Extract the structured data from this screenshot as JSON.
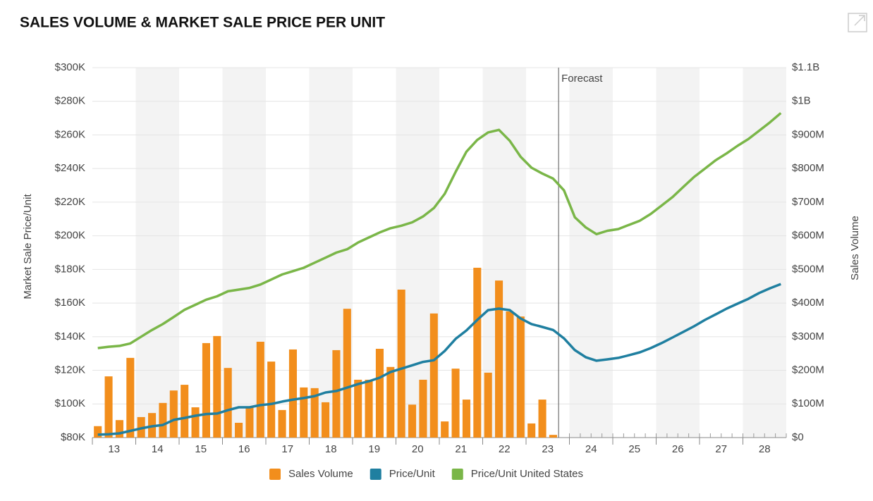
{
  "chart_data": {
    "type": "combo",
    "title": "SALES VOLUME & MARKET SALE PRICE PER UNIT",
    "y_label": "Market Sale Price/Unit",
    "y2_label": "Sales Volume",
    "annotation": "Forecast",
    "x": [
      13.125,
      13.375,
      13.625,
      13.875,
      14.125,
      14.375,
      14.625,
      14.875,
      15.125,
      15.375,
      15.625,
      15.875,
      16.125,
      16.375,
      16.625,
      16.875,
      17.125,
      17.375,
      17.625,
      17.875,
      18.125,
      18.375,
      18.625,
      18.875,
      19.125,
      19.375,
      19.625,
      19.875,
      20.125,
      20.375,
      20.625,
      20.875,
      21.125,
      21.375,
      21.625,
      21.875,
      22.125,
      22.375,
      22.625,
      22.875,
      23.125,
      23.375,
      23.625,
      23.875,
      24.125,
      24.375,
      24.625,
      24.875,
      25.125,
      25.375,
      25.625,
      25.875,
      26.125,
      26.375,
      26.625,
      26.875,
      27.125,
      27.375,
      27.625,
      27.875,
      28.125,
      28.375,
      28.625,
      28.875
    ],
    "xlim": [
      13,
      29
    ],
    "xticks": [
      {
        "value": 13.5,
        "label": "13"
      },
      {
        "value": 14.5,
        "label": "14"
      },
      {
        "value": 15.5,
        "label": "15"
      },
      {
        "value": 16.5,
        "label": "16"
      },
      {
        "value": 17.5,
        "label": "17"
      },
      {
        "value": 18.5,
        "label": "18"
      },
      {
        "value": 19.5,
        "label": "19"
      },
      {
        "value": 20.5,
        "label": "20"
      },
      {
        "value": 21.5,
        "label": "21"
      },
      {
        "value": 22.5,
        "label": "22"
      },
      {
        "value": 23.5,
        "label": "23"
      },
      {
        "value": 24.5,
        "label": "24"
      },
      {
        "value": 25.5,
        "label": "25"
      },
      {
        "value": 26.5,
        "label": "26"
      },
      {
        "value": 27.5,
        "label": "27"
      },
      {
        "value": 28.5,
        "label": "28"
      }
    ],
    "ylim": [
      80,
      300
    ],
    "yticks": [
      {
        "value": 80,
        "label": "$80K"
      },
      {
        "value": 100,
        "label": "$100K"
      },
      {
        "value": 120,
        "label": "$120K"
      },
      {
        "value": 140,
        "label": "$140K"
      },
      {
        "value": 160,
        "label": "$160K"
      },
      {
        "value": 180,
        "label": "$180K"
      },
      {
        "value": 200,
        "label": "$200K"
      },
      {
        "value": 220,
        "label": "$220K"
      },
      {
        "value": 240,
        "label": "$240K"
      },
      {
        "value": 260,
        "label": "$260K"
      },
      {
        "value": 280,
        "label": "$280K"
      },
      {
        "value": 300,
        "label": "$300K"
      }
    ],
    "y2lim": [
      0,
      1100
    ],
    "y2ticks": [
      {
        "value": 0,
        "label": "$0"
      },
      {
        "value": 100,
        "label": "$100M"
      },
      {
        "value": 200,
        "label": "$200M"
      },
      {
        "value": 300,
        "label": "$300M"
      },
      {
        "value": 400,
        "label": "$400M"
      },
      {
        "value": 500,
        "label": "$500M"
      },
      {
        "value": 600,
        "label": "$600M"
      },
      {
        "value": 700,
        "label": "$700M"
      },
      {
        "value": 800,
        "label": "$800M"
      },
      {
        "value": 900,
        "label": "$900M"
      },
      {
        "value": 1000,
        "label": "$1B"
      },
      {
        "value": 1100,
        "label": "$1.1B"
      }
    ],
    "grid": true,
    "bands": true,
    "legend": "bottom",
    "series": [
      {
        "name": "Sales Volume",
        "type": "bar",
        "axis": "y2",
        "color": "#f28e1c",
        "values": [
          34,
          182,
          52,
          237,
          61,
          73,
          103,
          140,
          157,
          90,
          281,
          302,
          207,
          44,
          90,
          285,
          226,
          82,
          262,
          149,
          147,
          105,
          260,
          383,
          172,
          172,
          264,
          210,
          440,
          98,
          172,
          369,
          48,
          205,
          113,
          505,
          193,
          467,
          375,
          360,
          42,
          113,
          8,
          null,
          null,
          null,
          null,
          null,
          null,
          null,
          null,
          null,
          null,
          null,
          null,
          null,
          null,
          null,
          null,
          null,
          null,
          null,
          null,
          null
        ]
      },
      {
        "name": "Price/Unit",
        "type": "line",
        "color": "#1f7fa0",
        "values": [
          81.7,
          82,
          82.5,
          84,
          85.5,
          86.7,
          87.5,
          90.5,
          91.7,
          93,
          94,
          94.3,
          96.3,
          98,
          98,
          99.3,
          100,
          101.4,
          102.6,
          103.5,
          104.7,
          106.8,
          107.7,
          109.7,
          111.8,
          113.5,
          115.6,
          119,
          121,
          123,
          125,
          126,
          131.5,
          138.7,
          143.7,
          150,
          155.8,
          156.7,
          155.8,
          150.8,
          147.5,
          145.8,
          144,
          139,
          132,
          127.8,
          125.7,
          126.5,
          127.4,
          129,
          130.7,
          133.2,
          136.2,
          139.5,
          142.8,
          146.2,
          150,
          153.3,
          156.7,
          159.6,
          162.5,
          166,
          168.8,
          171.3
        ]
      },
      {
        "name": "Price/Unit United States",
        "type": "line",
        "color": "#7ab648",
        "values": [
          133.2,
          134,
          134.5,
          136,
          140,
          144,
          147.5,
          151.7,
          156,
          159,
          162,
          164,
          167,
          168,
          169,
          171,
          174,
          177,
          179,
          181,
          184,
          187,
          190,
          192,
          196,
          199,
          202,
          204.5,
          206,
          208,
          211.5,
          216.5,
          225,
          238,
          250,
          257,
          261.5,
          263,
          256.5,
          247,
          240.5,
          237,
          234,
          227,
          211,
          205,
          201,
          203,
          204,
          206.5,
          209,
          213,
          218,
          223,
          229,
          235,
          240,
          245,
          249,
          253.5,
          257.5,
          262.5,
          267.5,
          273
        ]
      }
    ]
  }
}
